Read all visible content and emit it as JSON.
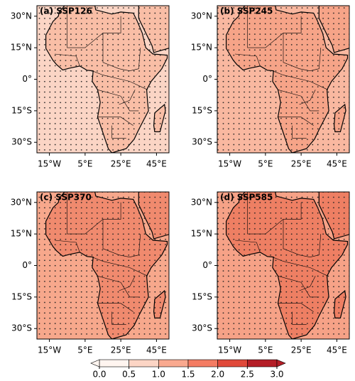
{
  "map": {
    "xlim": [
      -22,
      52
    ],
    "ylim": [
      -35,
      35
    ],
    "xticks": [
      {
        "value": -15,
        "label": "15°W"
      },
      {
        "value": 5,
        "label": "5°E"
      },
      {
        "value": 25,
        "label": "25°E"
      },
      {
        "value": 45,
        "label": "45°E"
      }
    ],
    "yticks": [
      {
        "value": 30,
        "label": "30°N"
      },
      {
        "value": 15,
        "label": "15°N"
      },
      {
        "value": 0,
        "label": "0°"
      },
      {
        "value": -15,
        "label": "15°S"
      },
      {
        "value": -30,
        "label": "30°S"
      }
    ]
  },
  "panels": [
    {
      "title": "(a) SSP126",
      "ocean_color": "#fbd5c5",
      "land_color": "#f9bea6"
    },
    {
      "title": "(b) SSP245",
      "ocean_color": "#f9b8a0",
      "land_color": "#f6a488"
    },
    {
      "title": "(c) SSP370",
      "ocean_color": "#f7a88c",
      "land_color": "#f08a6e"
    },
    {
      "title": "(d) SSP585",
      "ocean_color": "#f6a287",
      "land_color": "#ee7f63"
    }
  ],
  "colorbar": {
    "lim": [
      0,
      3
    ],
    "ticks": [
      {
        "value": 0,
        "label": "0.0"
      },
      0.5,
      {
        "value": 1,
        "label": "1.0"
      },
      1.5,
      {
        "value": 2,
        "label": "2.0"
      },
      2.5,
      {
        "value": 3,
        "label": "3.0"
      }
    ],
    "colors": [
      "#fff5f0",
      "#fcd5c5",
      "#f9a98f",
      "#f47c63",
      "#e0493a",
      "#b41e26"
    ]
  }
}
